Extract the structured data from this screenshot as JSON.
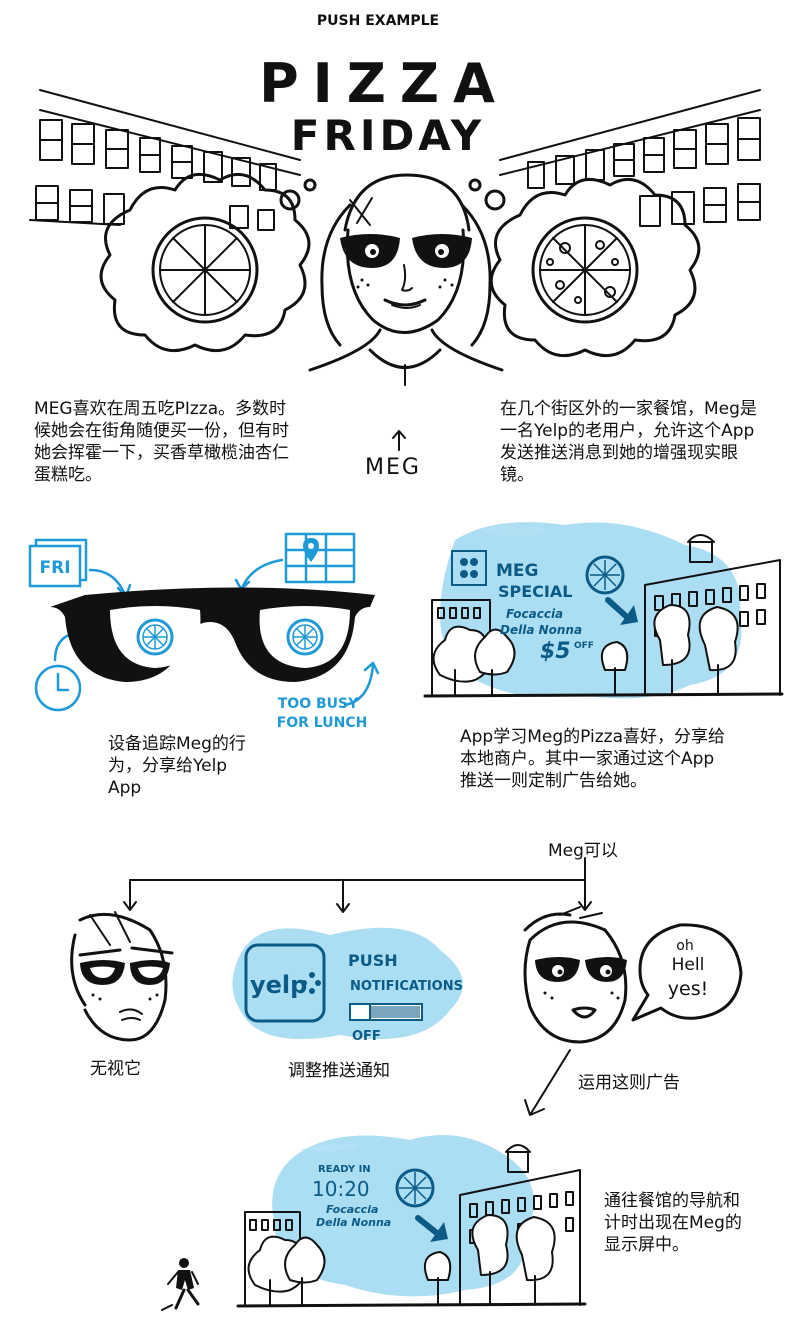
{
  "header": {
    "kicker": "PUSH EXAMPLE",
    "title_line1": "PIZZA",
    "title_line2": "FRIDAY"
  },
  "meg_label": "MEG",
  "captions": {
    "left_intro": "MEG喜欢在周五吃PIzza。多数时候她会在街角随便买一份，但有时她会挥霍一下，买香草橄榄油杏仁蛋糕吃。",
    "right_intro": "在几个街区外的一家餐馆，Meg是一名Yelp的老用户，允许这个App发送推送消息到她的增强现实眼镜。",
    "device_tracking": "设备追踪Meg的行为，分享给Yelp App",
    "app_learns": "App学习Meg的Pizza喜好，分享给本地商户。其中一家通过这个App推送一则定制广告给她。",
    "meg_can": "Meg可以",
    "ignore": "无视它",
    "adjust_push": "调整推送通知",
    "use_ad": "运用这则广告",
    "navigation": "通往餐馆的导航和计时出现在Meg的显示屏中。"
  },
  "panel_glasses": {
    "fri_label": "FRI",
    "too_busy": "TOO BUSY",
    "for_lunch": "FOR LUNCH"
  },
  "panel_special": {
    "meg": "MEG",
    "special": "SPECIAL",
    "item1": "Focaccia",
    "item2": "Della Nonna",
    "price": "$5",
    "off": "OFF"
  },
  "panel_push": {
    "brand": "yelp",
    "push": "PUSH",
    "notifications": "NOTIFICATIONS",
    "off": "OFF"
  },
  "speech": {
    "line1": "oh",
    "line2": "Hell",
    "line3": "yes!"
  },
  "panel_ready": {
    "ready_in": "READY IN",
    "time": "10:20",
    "item1": "Focaccia",
    "item2": "Della Nonna"
  },
  "colors": {
    "accent_blue": "#29a8e0",
    "ink": "#111111"
  }
}
